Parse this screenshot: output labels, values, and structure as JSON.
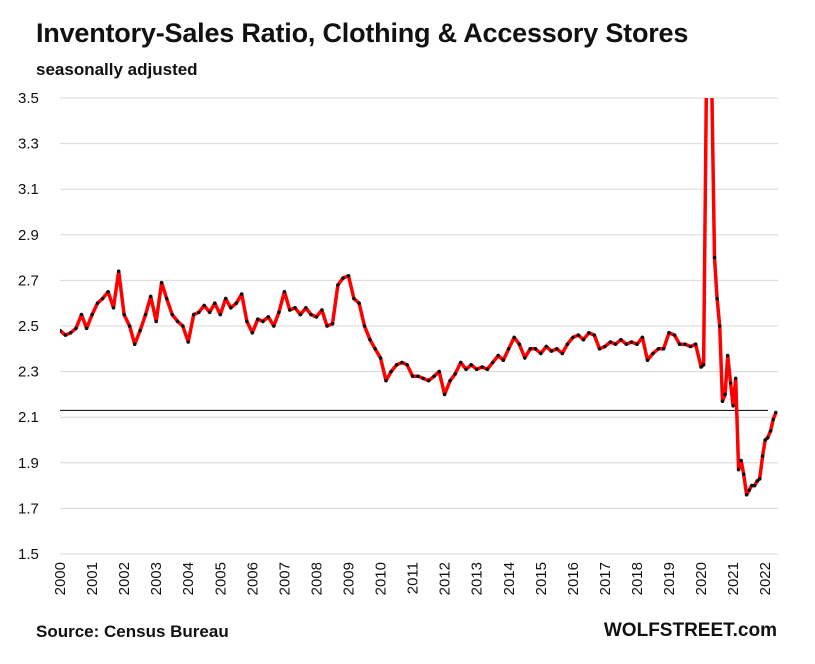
{
  "header": {
    "title": "Inventory-Sales Ratio, Clothing & Accessory Stores",
    "subtitle": "seasonally adjusted"
  },
  "footer": {
    "source": "Source: Census Bureau",
    "brand": "WOLFSTREET.com"
  },
  "colors": {
    "line": "#ff0000",
    "marker": "#111111",
    "reference_line": "#000000",
    "grid": "#d9d9d9"
  },
  "chart_data": {
    "type": "line",
    "title": "Inventory-Sales Ratio, Clothing & Accessory Stores",
    "subtitle": "seasonally adjusted",
    "xlabel": "",
    "ylabel": "",
    "ylim": [
      1.5,
      3.5
    ],
    "xlim": [
      2000,
      2022.4
    ],
    "y_ticks": [
      "1.5",
      "1.7",
      "1.9",
      "2.1",
      "2.3",
      "2.5",
      "2.7",
      "2.9",
      "3.1",
      "3.3",
      "3.5"
    ],
    "x_ticks": [
      "2000",
      "2001",
      "2002",
      "2003",
      "2004",
      "2005",
      "2006",
      "2007",
      "2008",
      "2009",
      "2010",
      "2011",
      "2012",
      "2013",
      "2014",
      "2015",
      "2016",
      "2017",
      "2018",
      "2019",
      "2020",
      "2021",
      "2022"
    ],
    "grid": "horizontal",
    "reference_line_y": 2.13,
    "series": [
      {
        "points": [
          [
            2000.0,
            2.48
          ],
          [
            2000.17,
            2.46
          ],
          [
            2000.33,
            2.47
          ],
          [
            2000.5,
            2.49
          ],
          [
            2000.67,
            2.55
          ],
          [
            2000.83,
            2.49
          ],
          [
            2001.0,
            2.55
          ],
          [
            2001.17,
            2.6
          ],
          [
            2001.33,
            2.62
          ],
          [
            2001.5,
            2.65
          ],
          [
            2001.67,
            2.58
          ],
          [
            2001.83,
            2.74
          ],
          [
            2002.0,
            2.55
          ],
          [
            2002.17,
            2.5
          ],
          [
            2002.33,
            2.42
          ],
          [
            2002.5,
            2.48
          ],
          [
            2002.67,
            2.55
          ],
          [
            2002.83,
            2.63
          ],
          [
            2003.0,
            2.52
          ],
          [
            2003.17,
            2.69
          ],
          [
            2003.33,
            2.62
          ],
          [
            2003.5,
            2.55
          ],
          [
            2003.67,
            2.52
          ],
          [
            2003.83,
            2.5
          ],
          [
            2004.0,
            2.43
          ],
          [
            2004.17,
            2.55
          ],
          [
            2004.33,
            2.56
          ],
          [
            2004.5,
            2.59
          ],
          [
            2004.67,
            2.56
          ],
          [
            2004.83,
            2.6
          ],
          [
            2005.0,
            2.55
          ],
          [
            2005.17,
            2.62
          ],
          [
            2005.33,
            2.58
          ],
          [
            2005.5,
            2.6
          ],
          [
            2005.67,
            2.64
          ],
          [
            2005.83,
            2.52
          ],
          [
            2006.0,
            2.47
          ],
          [
            2006.17,
            2.53
          ],
          [
            2006.33,
            2.52
          ],
          [
            2006.5,
            2.54
          ],
          [
            2006.67,
            2.5
          ],
          [
            2006.83,
            2.56
          ],
          [
            2007.0,
            2.65
          ],
          [
            2007.17,
            2.57
          ],
          [
            2007.33,
            2.58
          ],
          [
            2007.5,
            2.55
          ],
          [
            2007.67,
            2.58
          ],
          [
            2007.83,
            2.55
          ],
          [
            2008.0,
            2.54
          ],
          [
            2008.17,
            2.57
          ],
          [
            2008.33,
            2.5
          ],
          [
            2008.5,
            2.51
          ],
          [
            2008.67,
            2.68
          ],
          [
            2008.83,
            2.71
          ],
          [
            2009.0,
            2.72
          ],
          [
            2009.17,
            2.62
          ],
          [
            2009.33,
            2.6
          ],
          [
            2009.5,
            2.5
          ],
          [
            2009.67,
            2.44
          ],
          [
            2009.83,
            2.4
          ],
          [
            2010.0,
            2.36
          ],
          [
            2010.17,
            2.26
          ],
          [
            2010.33,
            2.3
          ],
          [
            2010.5,
            2.33
          ],
          [
            2010.67,
            2.34
          ],
          [
            2010.83,
            2.33
          ],
          [
            2011.0,
            2.28
          ],
          [
            2011.17,
            2.28
          ],
          [
            2011.33,
            2.27
          ],
          [
            2011.5,
            2.26
          ],
          [
            2011.67,
            2.28
          ],
          [
            2011.83,
            2.3
          ],
          [
            2012.0,
            2.2
          ],
          [
            2012.17,
            2.26
          ],
          [
            2012.33,
            2.29
          ],
          [
            2012.5,
            2.34
          ],
          [
            2012.67,
            2.31
          ],
          [
            2012.83,
            2.33
          ],
          [
            2013.0,
            2.31
          ],
          [
            2013.17,
            2.32
          ],
          [
            2013.33,
            2.31
          ],
          [
            2013.5,
            2.34
          ],
          [
            2013.67,
            2.37
          ],
          [
            2013.83,
            2.35
          ],
          [
            2014.0,
            2.4
          ],
          [
            2014.17,
            2.45
          ],
          [
            2014.33,
            2.42
          ],
          [
            2014.5,
            2.36
          ],
          [
            2014.67,
            2.4
          ],
          [
            2014.83,
            2.4
          ],
          [
            2015.0,
            2.38
          ],
          [
            2015.17,
            2.41
          ],
          [
            2015.33,
            2.39
          ],
          [
            2015.5,
            2.4
          ],
          [
            2015.67,
            2.38
          ],
          [
            2015.83,
            2.42
          ],
          [
            2016.0,
            2.45
          ],
          [
            2016.17,
            2.46
          ],
          [
            2016.33,
            2.44
          ],
          [
            2016.5,
            2.47
          ],
          [
            2016.67,
            2.46
          ],
          [
            2016.83,
            2.4
          ],
          [
            2017.0,
            2.41
          ],
          [
            2017.17,
            2.43
          ],
          [
            2017.33,
            2.42
          ],
          [
            2017.5,
            2.44
          ],
          [
            2017.67,
            2.42
          ],
          [
            2017.83,
            2.43
          ],
          [
            2018.0,
            2.42
          ],
          [
            2018.17,
            2.45
          ],
          [
            2018.33,
            2.35
          ],
          [
            2018.5,
            2.38
          ],
          [
            2018.67,
            2.4
          ],
          [
            2018.83,
            2.4
          ],
          [
            2019.0,
            2.47
          ],
          [
            2019.17,
            2.46
          ],
          [
            2019.33,
            2.42
          ],
          [
            2019.5,
            2.42
          ],
          [
            2019.67,
            2.41
          ],
          [
            2019.83,
            2.42
          ],
          [
            2020.0,
            2.32
          ],
          [
            2020.08,
            2.33
          ],
          [
            2020.17,
            3.6
          ],
          [
            2020.25,
            3.6
          ],
          [
            2020.33,
            3.6
          ],
          [
            2020.42,
            2.8
          ],
          [
            2020.5,
            2.62
          ],
          [
            2020.58,
            2.5
          ],
          [
            2020.67,
            2.17
          ],
          [
            2020.75,
            2.2
          ],
          [
            2020.83,
            2.37
          ],
          [
            2020.92,
            2.25
          ],
          [
            2021.0,
            2.15
          ],
          [
            2021.08,
            2.27
          ],
          [
            2021.17,
            1.87
          ],
          [
            2021.25,
            1.91
          ],
          [
            2021.33,
            1.85
          ],
          [
            2021.42,
            1.76
          ],
          [
            2021.5,
            1.78
          ],
          [
            2021.58,
            1.8
          ],
          [
            2021.67,
            1.8
          ],
          [
            2021.75,
            1.82
          ],
          [
            2021.83,
            1.83
          ],
          [
            2021.92,
            1.93
          ],
          [
            2022.0,
            2.0
          ],
          [
            2022.08,
            2.01
          ],
          [
            2022.17,
            2.04
          ],
          [
            2022.25,
            2.09
          ],
          [
            2022.33,
            2.12
          ]
        ]
      }
    ]
  }
}
